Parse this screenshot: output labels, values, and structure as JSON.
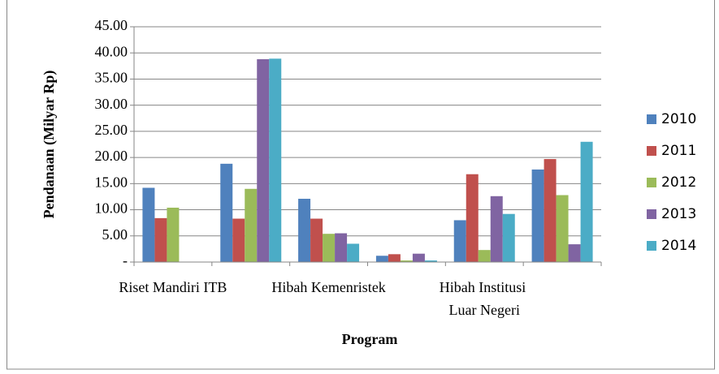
{
  "chart_data": {
    "type": "bar",
    "categories": [
      "Riset Mandiri ITB",
      null,
      "Hibah Kemenristek",
      null,
      "Hibah Institusi Luar Negeri",
      null
    ],
    "series": [
      {
        "name": "2010",
        "color": "#4f81bd",
        "values": [
          14.2,
          18.8,
          12.1,
          1.2,
          8.0,
          17.7
        ]
      },
      {
        "name": "2011",
        "color": "#c0504d",
        "values": [
          8.4,
          8.3,
          8.3,
          1.5,
          16.8,
          19.7
        ]
      },
      {
        "name": "2012",
        "color": "#9bbb59",
        "values": [
          10.4,
          14.0,
          5.4,
          0.3,
          2.3,
          12.8
        ]
      },
      {
        "name": "2013",
        "color": "#8064a2",
        "values": [
          0,
          38.8,
          5.5,
          1.6,
          12.6,
          3.4
        ]
      },
      {
        "name": "2014",
        "color": "#4bacc6",
        "values": [
          0,
          38.9,
          3.5,
          0.3,
          9.2,
          23.0
        ]
      }
    ],
    "ylabel": "Pendanaan (Milyar Rp)",
    "xlabel": "Program",
    "ylim": [
      0,
      45
    ],
    "yticks": [
      {
        "value": 0,
        "label": "-"
      },
      {
        "value": 5,
        "label": "5.00"
      },
      {
        "value": 10,
        "label": "10.00"
      },
      {
        "value": 15,
        "label": "15.00"
      },
      {
        "value": 20,
        "label": "20.00"
      },
      {
        "value": 25,
        "label": "25.00"
      },
      {
        "value": 30,
        "label": "30.00"
      },
      {
        "value": 35,
        "label": "35.00"
      },
      {
        "value": 40,
        "label": "40.00"
      },
      {
        "value": 45,
        "label": "45.00"
      }
    ],
    "grid": true,
    "legend": "right"
  }
}
